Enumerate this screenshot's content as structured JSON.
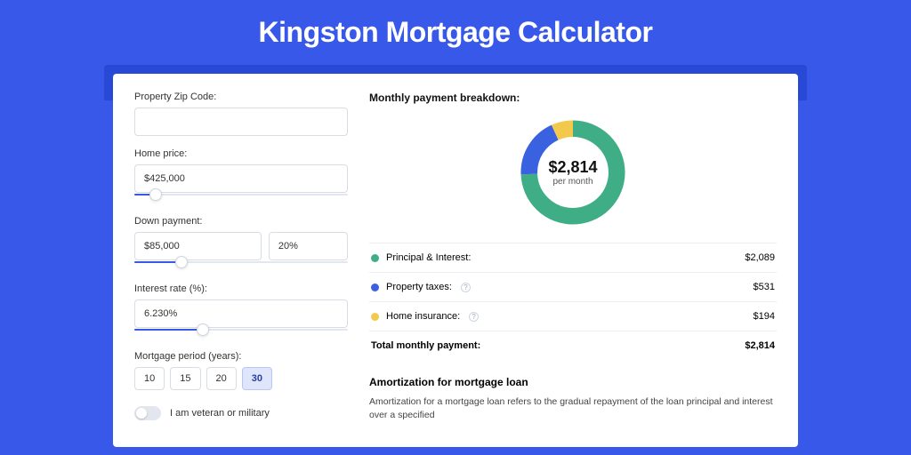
{
  "page": {
    "title": "Kingston Mortgage Calculator",
    "background_color": "#3858e9",
    "strip_color": "#2749d6",
    "panel_color": "#ffffff"
  },
  "form": {
    "zip": {
      "label": "Property Zip Code:",
      "value": ""
    },
    "home_price": {
      "label": "Home price:",
      "value": "$425,000",
      "slider_fill_pct": 10,
      "slider_thumb_pct": 10
    },
    "down_payment": {
      "label": "Down payment:",
      "value": "$85,000",
      "percent": "20%",
      "slider_fill_pct": 22,
      "slider_thumb_pct": 22
    },
    "interest_rate": {
      "label": "Interest rate (%):",
      "value": "6.230%",
      "slider_fill_pct": 32,
      "slider_thumb_pct": 32
    },
    "period": {
      "label": "Mortgage period (years):",
      "options": [
        "10",
        "15",
        "20",
        "30"
      ],
      "selected": "30"
    },
    "veteran": {
      "label": "I am veteran or military",
      "on": false
    }
  },
  "breakdown": {
    "heading": "Monthly payment breakdown:",
    "donut": {
      "amount": "$2,814",
      "sub": "per month",
      "slices": [
        {
          "key": "principal_interest",
          "color": "#3fae87",
          "value": 2089
        },
        {
          "key": "property_taxes",
          "color": "#3a62e0",
          "value": 531
        },
        {
          "key": "home_insurance",
          "color": "#f2c94c",
          "value": 194
        }
      ],
      "ring_thickness": 18
    },
    "rows": [
      {
        "label": "Principal & Interest:",
        "color": "#3fae87",
        "value": "$2,089",
        "info": false
      },
      {
        "label": "Property taxes:",
        "color": "#3a62e0",
        "value": "$531",
        "info": true
      },
      {
        "label": "Home insurance:",
        "color": "#f2c94c",
        "value": "$194",
        "info": true
      }
    ],
    "total": {
      "label": "Total monthly payment:",
      "value": "$2,814"
    }
  },
  "amortization": {
    "heading": "Amortization for mortgage loan",
    "body": "Amortization for a mortgage loan refers to the gradual repayment of the loan principal and interest over a specified"
  }
}
